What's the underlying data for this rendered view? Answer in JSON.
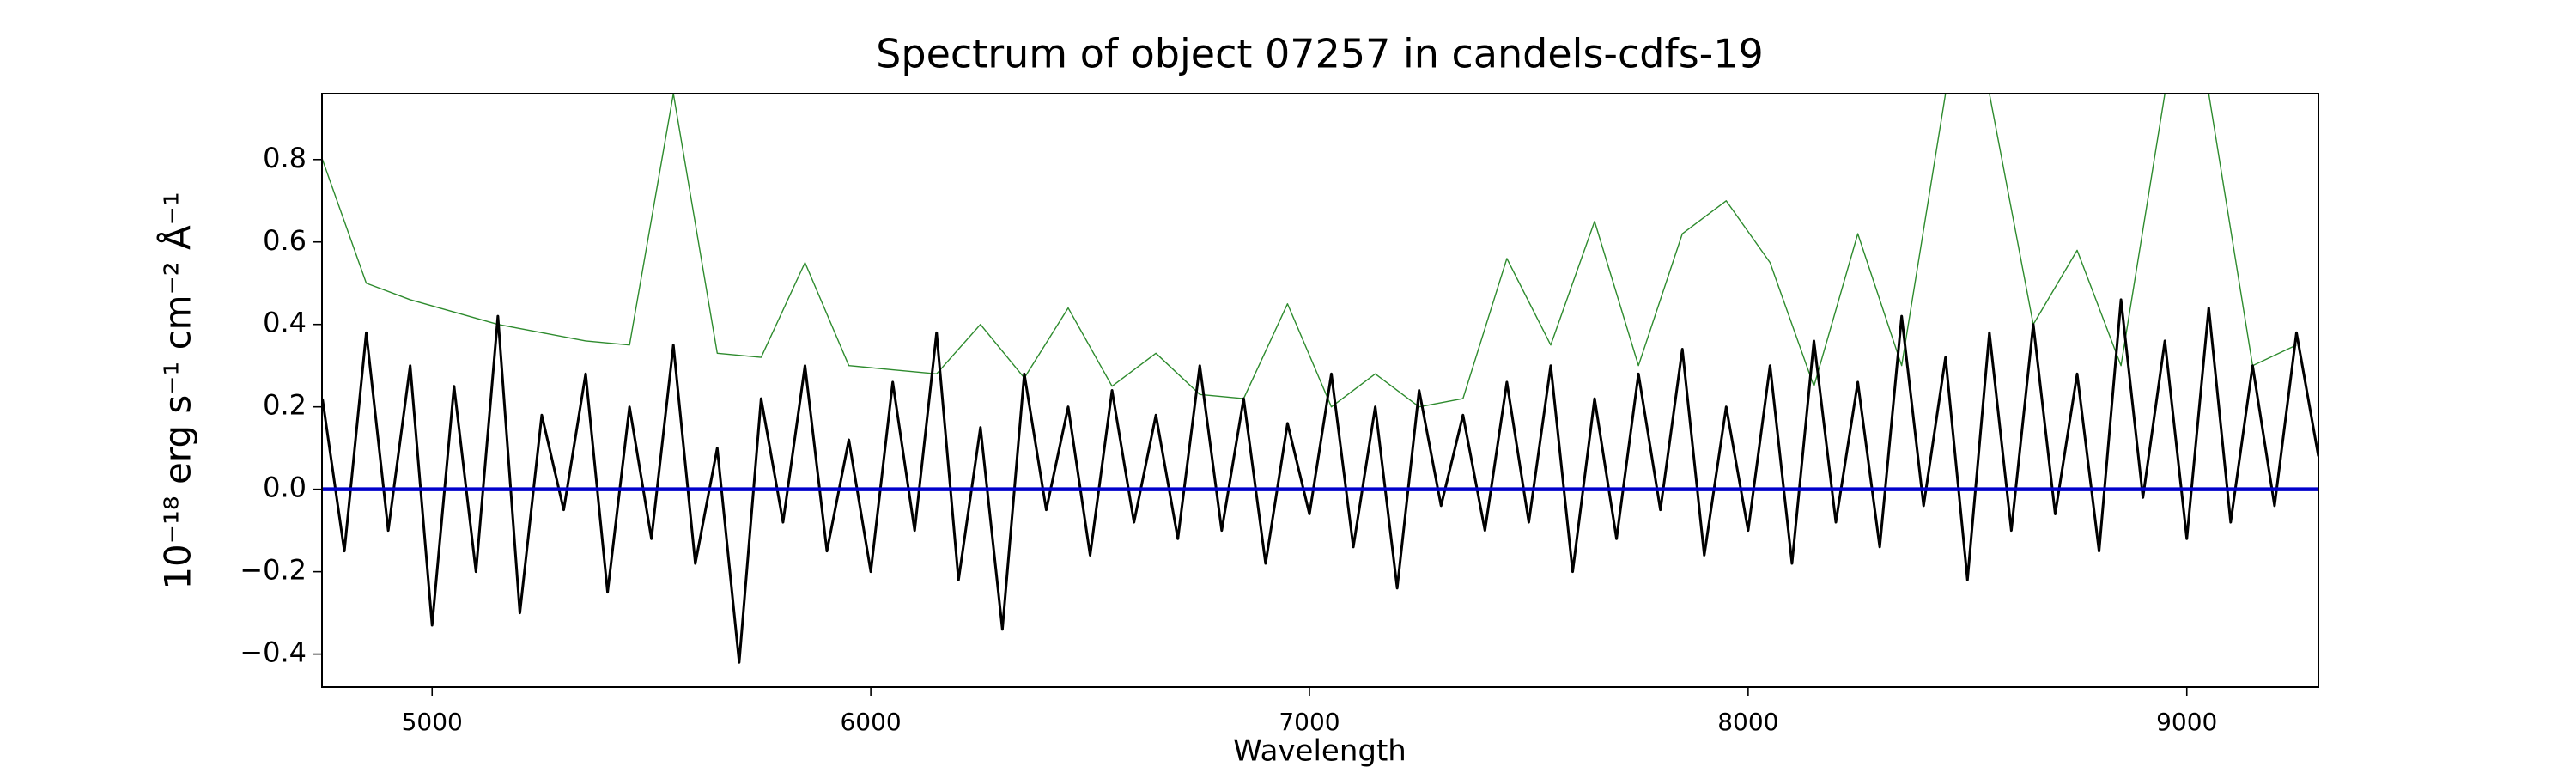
{
  "chart_data": {
    "type": "line",
    "title": "Spectrum of object 07257 in candels-cdfs-19",
    "xlabel": "Wavelength",
    "ylabel": "10⁻¹⁸ erg s⁻¹ cm⁻² Å⁻¹",
    "xlim": [
      4749,
      9300
    ],
    "ylim": [
      -0.48,
      0.96
    ],
    "xticks": [
      5000,
      6000,
      7000,
      8000,
      9000
    ],
    "yticks": [
      {
        "value": -0.4,
        "label": "−0.4"
      },
      {
        "value": -0.2,
        "label": "−0.2"
      },
      {
        "value": 0,
        "label": "0.0"
      },
      0.2,
      0.4,
      0.6,
      0.8
    ],
    "grid": false,
    "series": [
      {
        "color": "#2e8b2e",
        "width": 1.4,
        "x": [
          4750,
          4850,
          4950,
          5050,
          5150,
          5250,
          5350,
          5450,
          5550,
          5650,
          5750,
          5850,
          5950,
          6050,
          6150,
          6250,
          6350,
          6450,
          6550,
          6650,
          6750,
          6850,
          6950,
          7050,
          7150,
          7250,
          7350,
          7450,
          7550,
          7650,
          7750,
          7850,
          7950,
          8050,
          8150,
          8250,
          8350,
          8450,
          8550,
          8650,
          8750,
          8850,
          8950,
          9050,
          9150,
          9250
        ],
        "values": [
          0.8,
          0.5,
          0.46,
          0.43,
          0.4,
          0.38,
          0.36,
          0.35,
          0.96,
          0.33,
          0.32,
          0.55,
          0.3,
          0.29,
          0.28,
          0.4,
          0.27,
          0.44,
          0.25,
          0.33,
          0.23,
          0.22,
          0.45,
          0.2,
          0.28,
          0.2,
          0.22,
          0.56,
          0.35,
          0.65,
          0.3,
          0.62,
          0.7,
          0.55,
          0.25,
          0.62,
          0.3,
          0.96,
          0.96,
          0.4,
          0.58,
          0.3,
          0.96,
          0.96,
          0.3,
          0.35
        ]
      },
      {
        "color": "#000000",
        "width": 3,
        "x": [
          4750,
          4800,
          4850,
          4900,
          4950,
          5000,
          5050,
          5100,
          5150,
          5200,
          5250,
          5300,
          5350,
          5400,
          5450,
          5500,
          5550,
          5600,
          5650,
          5700,
          5750,
          5800,
          5850,
          5900,
          5950,
          6000,
          6050,
          6100,
          6150,
          6200,
          6250,
          6300,
          6350,
          6400,
          6450,
          6500,
          6550,
          6600,
          6650,
          6700,
          6750,
          6800,
          6850,
          6900,
          6950,
          7000,
          7050,
          7100,
          7150,
          7200,
          7250,
          7300,
          7350,
          7400,
          7450,
          7500,
          7550,
          7600,
          7650,
          7700,
          7750,
          7800,
          7850,
          7900,
          7950,
          8000,
          8050,
          8100,
          8150,
          8200,
          8250,
          8300,
          8350,
          8400,
          8450,
          8500,
          8550,
          8600,
          8650,
          8700,
          8750,
          8800,
          8850,
          8900,
          8950,
          9000,
          9050,
          9100,
          9150,
          9200,
          9250,
          9300
        ],
        "values": [
          0.22,
          -0.15,
          0.38,
          -0.1,
          0.3,
          -0.33,
          0.25,
          -0.2,
          0.42,
          -0.3,
          0.18,
          -0.05,
          0.28,
          -0.25,
          0.2,
          -0.12,
          0.35,
          -0.18,
          0.1,
          -0.42,
          0.22,
          -0.08,
          0.3,
          -0.15,
          0.12,
          -0.2,
          0.26,
          -0.1,
          0.38,
          -0.22,
          0.15,
          -0.34,
          0.28,
          -0.05,
          0.2,
          -0.16,
          0.24,
          -0.08,
          0.18,
          -0.12,
          0.3,
          -0.1,
          0.22,
          -0.18,
          0.16,
          -0.06,
          0.28,
          -0.14,
          0.2,
          -0.24,
          0.24,
          -0.04,
          0.18,
          -0.1,
          0.26,
          -0.08,
          0.3,
          -0.2,
          0.22,
          -0.12,
          0.28,
          -0.05,
          0.34,
          -0.16,
          0.2,
          -0.1,
          0.3,
          -0.18,
          0.36,
          -0.08,
          0.26,
          -0.14,
          0.42,
          -0.04,
          0.32,
          -0.22,
          0.38,
          -0.1,
          0.4,
          -0.06,
          0.28,
          -0.15,
          0.46,
          -0.02,
          0.36,
          -0.12,
          0.44,
          -0.08,
          0.3,
          -0.04,
          0.38,
          0.08
        ]
      },
      {
        "color": "#0000cc",
        "width": 4.5,
        "x": [
          4750,
          9300
        ],
        "values": [
          0,
          0
        ]
      }
    ]
  }
}
